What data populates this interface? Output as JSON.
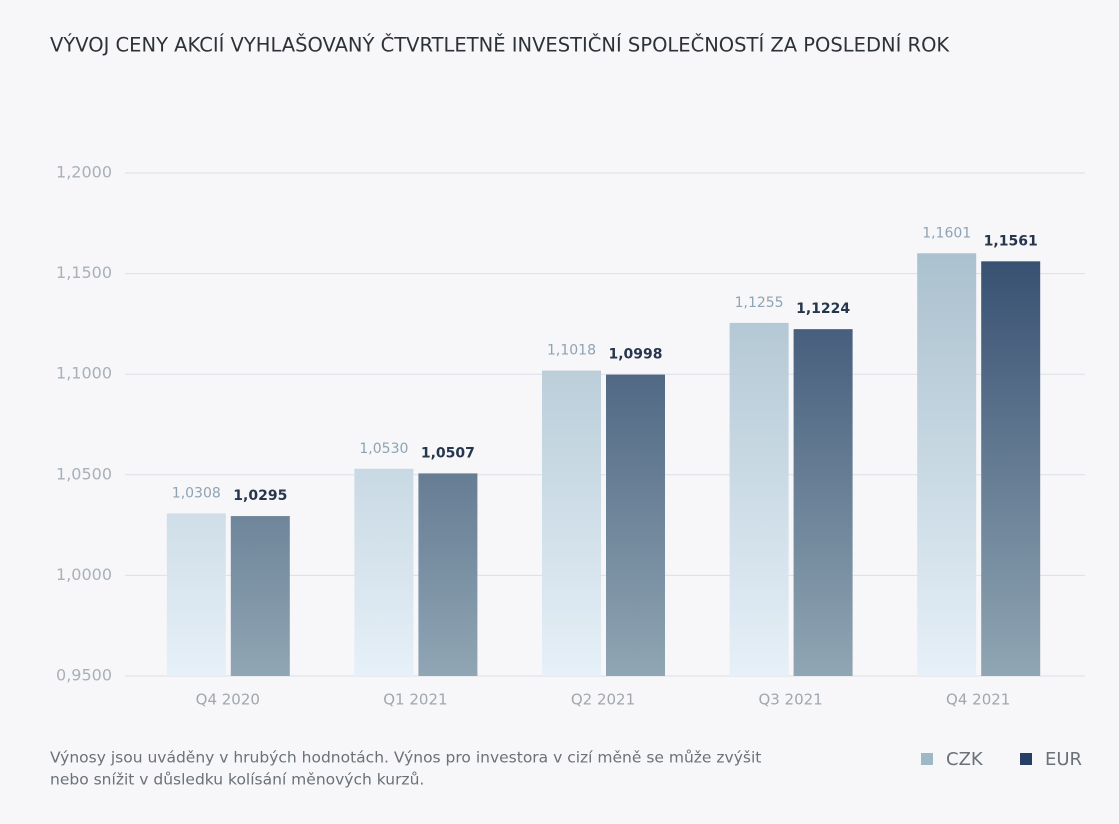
{
  "chart_data": {
    "type": "bar",
    "title": "VÝVOJ CENY AKCIÍ VYHLAŠOVANÝ ČTVRTLETNĚ INVESTIČNÍ SPOLEČNOSTÍ ZA POSLEDNÍ ROK",
    "categories": [
      "Q4 2020",
      "Q1 2021",
      "Q2 2021",
      "Q3 2021",
      "Q4 2021"
    ],
    "series": [
      {
        "name": "CZK",
        "color": "#9fb8c6",
        "values": [
          1.0308,
          1.053,
          1.1018,
          1.1255,
          1.1601
        ],
        "value_labels": [
          "1,0308",
          "1,0530",
          "1,1018",
          "1,1255",
          "1,1601"
        ]
      },
      {
        "name": "EUR",
        "color": "#263f64",
        "values": [
          1.0295,
          1.0507,
          1.0998,
          1.1224,
          1.1561
        ],
        "value_labels": [
          "1,0295",
          "1,0507",
          "1,0998",
          "1,1224",
          "1,1561"
        ]
      }
    ],
    "ylim": [
      0.95,
      1.2
    ],
    "yticks": [
      {
        "value": 0.95,
        "label": "0,9500"
      },
      {
        "value": 1.0,
        "label": "1,0000"
      },
      {
        "value": 1.05,
        "label": "1,0500"
      },
      {
        "value": 1.1,
        "label": "1,1000"
      },
      {
        "value": 1.15,
        "label": "1,1500"
      },
      {
        "value": 1.2,
        "label": "1,2000"
      }
    ],
    "grid": true,
    "legend": "bottom-right",
    "note": [
      "Výnosy jsou uváděny v hrubých hodnotách. Výnos pro investora v cizí měně se může zvýšit",
      "nebo snížit v důsledku kolísání měnových kurzů."
    ]
  }
}
